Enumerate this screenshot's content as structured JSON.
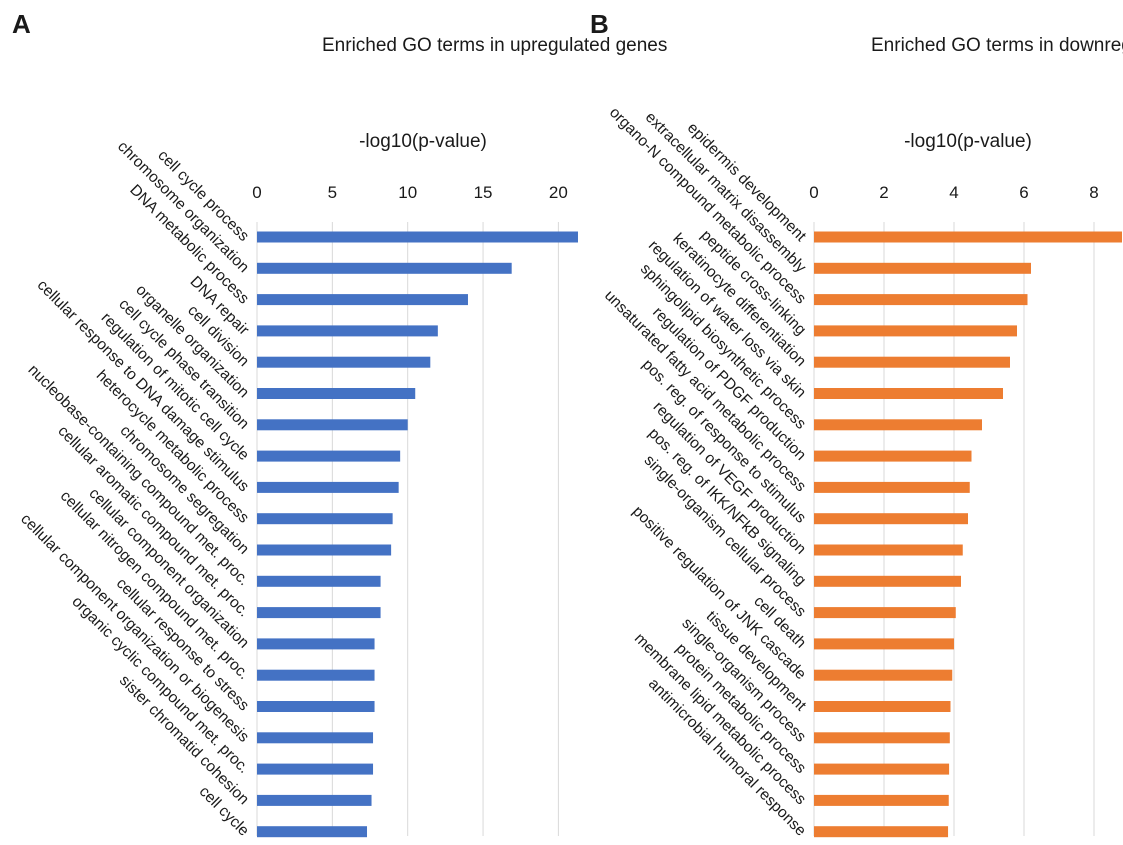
{
  "chart_data": [
    {
      "type": "bar",
      "orientation": "horizontal",
      "panel_label": "A",
      "title": "Enriched GO terms in upregulated genes",
      "xlabel": "-log10(p-value)",
      "ylabel": "",
      "xlim": [
        0,
        21.5
      ],
      "ticks": [
        0,
        5,
        10,
        15,
        20
      ],
      "grid": true,
      "color": "#4472C4",
      "categories": [
        "cell cycle process",
        "chromosome organization",
        "DNA metabolic process",
        "DNA repair",
        "cell division",
        "organelle organization",
        "cell cycle phase transition",
        "regulation of mitotic cell cycle",
        "cellular response to DNA damage stimulus",
        "heterocycle metabolic process",
        "chromosome segregation",
        "nucleobase-containing compound met. proc.",
        "cellular aromatic compound met. proc.",
        "cellular component organization",
        "cellular nitrogen compound met. proc.",
        "cellular response to stress",
        "cellular component organization or biogenesis",
        "organic cyclic compound met. proc.",
        "sister chromatid cohesion",
        "cell cycle"
      ],
      "values": [
        21.3,
        16.9,
        14.0,
        12.0,
        11.5,
        10.5,
        10.0,
        9.5,
        9.4,
        9.0,
        8.9,
        8.2,
        8.2,
        7.8,
        7.8,
        7.8,
        7.7,
        7.7,
        7.6,
        7.3
      ]
    },
    {
      "type": "bar",
      "orientation": "horizontal",
      "panel_label": "B",
      "title": "Enriched GO terms in downregulated genes",
      "xlabel": "-log10(p-value)",
      "ylabel": "",
      "xlim": [
        0,
        8.8
      ],
      "ticks": [
        0,
        2,
        4,
        6,
        8
      ],
      "grid": true,
      "color": "#ED7D31",
      "categories": [
        "epidermis development",
        "extracellular matrix disassembly",
        "organo-N compound metabolic process",
        "peptide cross-linking",
        "keratinocyte differentiation",
        "regulation of water loss via skin",
        "sphingolipid biosynthetic process",
        "regulation of PDGF production",
        "unsaturated fatty acid metabolic process",
        "pos. reg. of response to stimulus",
        "regulation of VEGF production",
        "pos. reg. of IKK/NFkB signaling",
        "single-organism cellular process",
        "cell death",
        "positive regulation of JNK cascade",
        "tissue development",
        "single-organism process",
        "protein metabolic process",
        "membrane lipid metabolic process",
        "antimicrobial humoral response"
      ],
      "values": [
        8.8,
        6.2,
        6.1,
        5.8,
        5.6,
        5.4,
        4.8,
        4.5,
        4.45,
        4.4,
        4.25,
        4.2,
        4.05,
        4.0,
        3.95,
        3.9,
        3.88,
        3.86,
        3.85,
        3.83
      ]
    }
  ]
}
